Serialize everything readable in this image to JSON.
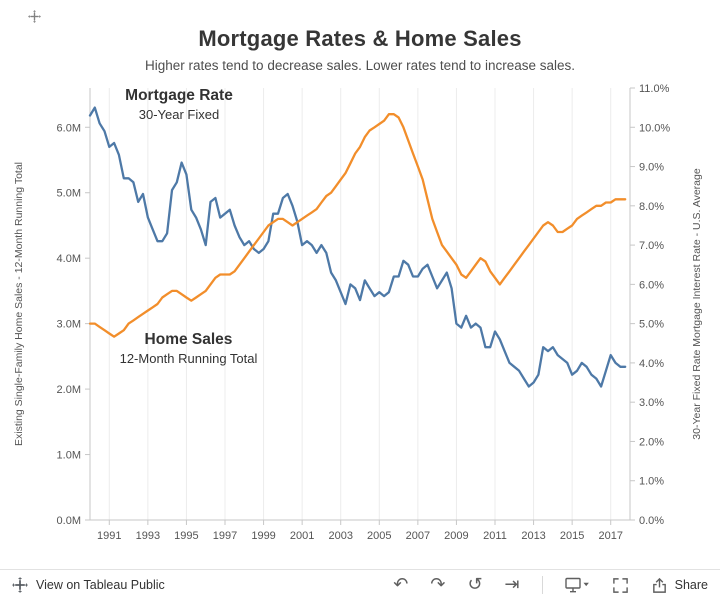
{
  "chart_data": {
    "type": "line",
    "title": "Mortgage Rates & Home Sales",
    "subtitle": "Higher rates tend to decrease sales. Lower rates tend to increase sales.",
    "x_axis": {
      "range": [
        1990,
        2018
      ],
      "ticks": [
        1991,
        1993,
        1995,
        1997,
        1999,
        2001,
        2003,
        2005,
        2007,
        2009,
        2011,
        2013,
        2015,
        2017
      ],
      "gridlines": true
    },
    "left_axis": {
      "label": "Existing Single-Family Home Sales - 12-Month Running Total",
      "range": [
        0,
        6.6
      ],
      "tick_values": [
        0,
        1,
        2,
        3,
        4,
        5,
        6
      ],
      "tick_labels": [
        "0.0M",
        "1.0M",
        "2.0M",
        "3.0M",
        "4.0M",
        "5.0M",
        "6.0M"
      ]
    },
    "right_axis": {
      "label": "30-Year Fixed Rate Mortgage Interest Rate - U.S. Average",
      "range": [
        0,
        11
      ],
      "tick_values": [
        0,
        1,
        2,
        3,
        4,
        5,
        6,
        7,
        8,
        9,
        10,
        11
      ],
      "tick_labels": [
        "0.0%",
        "1.0%",
        "2.0%",
        "3.0%",
        "4.0%",
        "5.0%",
        "6.0%",
        "7.0%",
        "8.0%",
        "9.0%",
        "10.0%",
        "11.0%"
      ]
    },
    "annotations": [
      {
        "title": "Mortgage Rate",
        "subtitle": "30-Year Fixed"
      },
      {
        "title": "Home Sales",
        "subtitle": "12-Month Running Total"
      }
    ],
    "colors": {
      "mortgage_rate": "#4e79a7",
      "home_sales": "#f28e2b",
      "gridline": "#ececec",
      "axis": "#c7c7c7",
      "tick_text": "#555555"
    },
    "series": [
      {
        "name": "Mortgage Rate (30-Year Fixed)",
        "axis": "right",
        "color": "#4e79a7",
        "x_start": 1990,
        "x_step": 0.25,
        "values": [
          10.3,
          10.5,
          10.1,
          9.9,
          9.5,
          9.6,
          9.3,
          8.7,
          8.7,
          8.6,
          8.1,
          8.3,
          7.7,
          7.4,
          7.1,
          7.1,
          7.3,
          8.4,
          8.6,
          9.1,
          8.8,
          7.9,
          7.7,
          7.4,
          7.0,
          8.1,
          8.2,
          7.7,
          7.8,
          7.9,
          7.5,
          7.2,
          7.0,
          7.1,
          6.9,
          6.8,
          6.9,
          7.1,
          7.8,
          7.8,
          8.2,
          8.3,
          8.0,
          7.6,
          7.0,
          7.1,
          7.0,
          6.8,
          7.0,
          6.8,
          6.3,
          6.1,
          5.8,
          5.5,
          6.0,
          5.9,
          5.6,
          6.1,
          5.9,
          5.7,
          5.8,
          5.7,
          5.8,
          6.2,
          6.2,
          6.6,
          6.5,
          6.2,
          6.2,
          6.4,
          6.5,
          6.2,
          5.9,
          6.1,
          6.3,
          5.9,
          5.0,
          4.9,
          5.2,
          4.9,
          5.0,
          4.9,
          4.4,
          4.4,
          4.8,
          4.6,
          4.3,
          4.0,
          3.9,
          3.8,
          3.6,
          3.4,
          3.5,
          3.7,
          4.4,
          4.3,
          4.4,
          4.2,
          4.1,
          4.0,
          3.7,
          3.8,
          4.0,
          3.9,
          3.7,
          3.6,
          3.4,
          3.8,
          4.2,
          4.0,
          3.9,
          3.9
        ]
      },
      {
        "name": "Home Sales (12-Month Running Total)",
        "axis": "left",
        "color": "#f28e2b",
        "x_start": 1990,
        "x_step": 0.25,
        "values": [
          3.0,
          3.0,
          2.95,
          2.9,
          2.85,
          2.8,
          2.85,
          2.9,
          3.0,
          3.05,
          3.1,
          3.15,
          3.2,
          3.25,
          3.3,
          3.4,
          3.45,
          3.5,
          3.5,
          3.45,
          3.4,
          3.35,
          3.4,
          3.45,
          3.5,
          3.6,
          3.7,
          3.75,
          3.75,
          3.75,
          3.8,
          3.9,
          4.0,
          4.1,
          4.2,
          4.3,
          4.4,
          4.5,
          4.55,
          4.6,
          4.6,
          4.55,
          4.5,
          4.55,
          4.6,
          4.65,
          4.7,
          4.75,
          4.85,
          4.95,
          5.0,
          5.1,
          5.2,
          5.3,
          5.45,
          5.6,
          5.7,
          5.85,
          5.95,
          6.0,
          6.05,
          6.1,
          6.2,
          6.2,
          6.15,
          6.0,
          5.8,
          5.6,
          5.4,
          5.2,
          4.9,
          4.6,
          4.4,
          4.2,
          4.1,
          4.0,
          3.9,
          3.75,
          3.7,
          3.8,
          3.9,
          4.0,
          3.95,
          3.8,
          3.7,
          3.6,
          3.7,
          3.8,
          3.9,
          4.0,
          4.1,
          4.2,
          4.3,
          4.4,
          4.5,
          4.55,
          4.5,
          4.4,
          4.4,
          4.45,
          4.5,
          4.6,
          4.65,
          4.7,
          4.75,
          4.8,
          4.8,
          4.85,
          4.85,
          4.9,
          4.9,
          4.9
        ]
      }
    ],
    "legend": "none"
  },
  "toolbar": {
    "view_label": "View on Tableau Public",
    "share_label": "Share",
    "icons": [
      "undo",
      "redo",
      "revert",
      "replay",
      "download",
      "fullscreen",
      "share"
    ]
  }
}
